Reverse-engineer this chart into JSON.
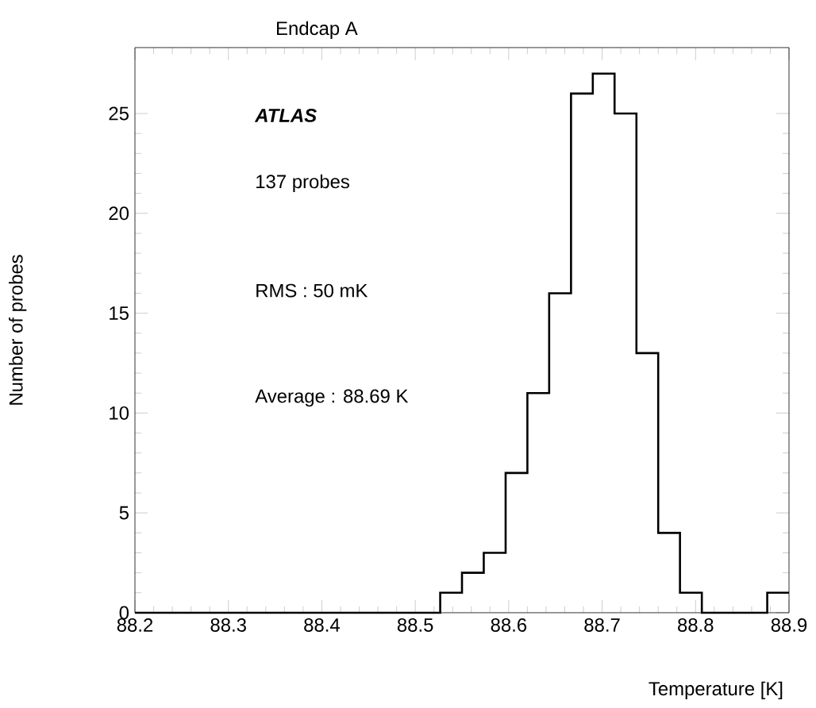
{
  "chart_data": {
    "type": "histogram",
    "title": "Endcap A",
    "xlabel": "Temperature [K]",
    "ylabel": "Number of probes",
    "annotations": [
      "ATLAS",
      "137 probes",
      "RMS : 50 mK",
      "Average : 88.69 K"
    ],
    "bins": [
      88.2,
      88.2233,
      88.2467,
      88.27,
      88.2933,
      88.3167,
      88.34,
      88.3633,
      88.3867,
      88.41,
      88.4333,
      88.4567,
      88.48,
      88.5033,
      88.5267,
      88.55,
      88.5733,
      88.5967,
      88.62,
      88.6433,
      88.6667,
      88.69,
      88.7133,
      88.7367,
      88.76,
      88.7833,
      88.8067,
      88.83,
      88.8533,
      88.8767,
      88.9
    ],
    "values": [
      0,
      0,
      0,
      0,
      0,
      0,
      0,
      0,
      0,
      0,
      0,
      0,
      0,
      0,
      1,
      2,
      3,
      7,
      11,
      16,
      26,
      27,
      25,
      13,
      4,
      1,
      0,
      0,
      0,
      1
    ],
    "color": "#000000",
    "xlim": [
      88.2,
      88.9
    ],
    "ylim": [
      0,
      28.3
    ],
    "xticks": [
      88.2,
      88.3,
      88.4,
      88.5,
      88.6,
      88.7,
      88.8,
      88.9
    ],
    "yticks": [
      0,
      5,
      10,
      15,
      20,
      25
    ],
    "grid": false
  }
}
